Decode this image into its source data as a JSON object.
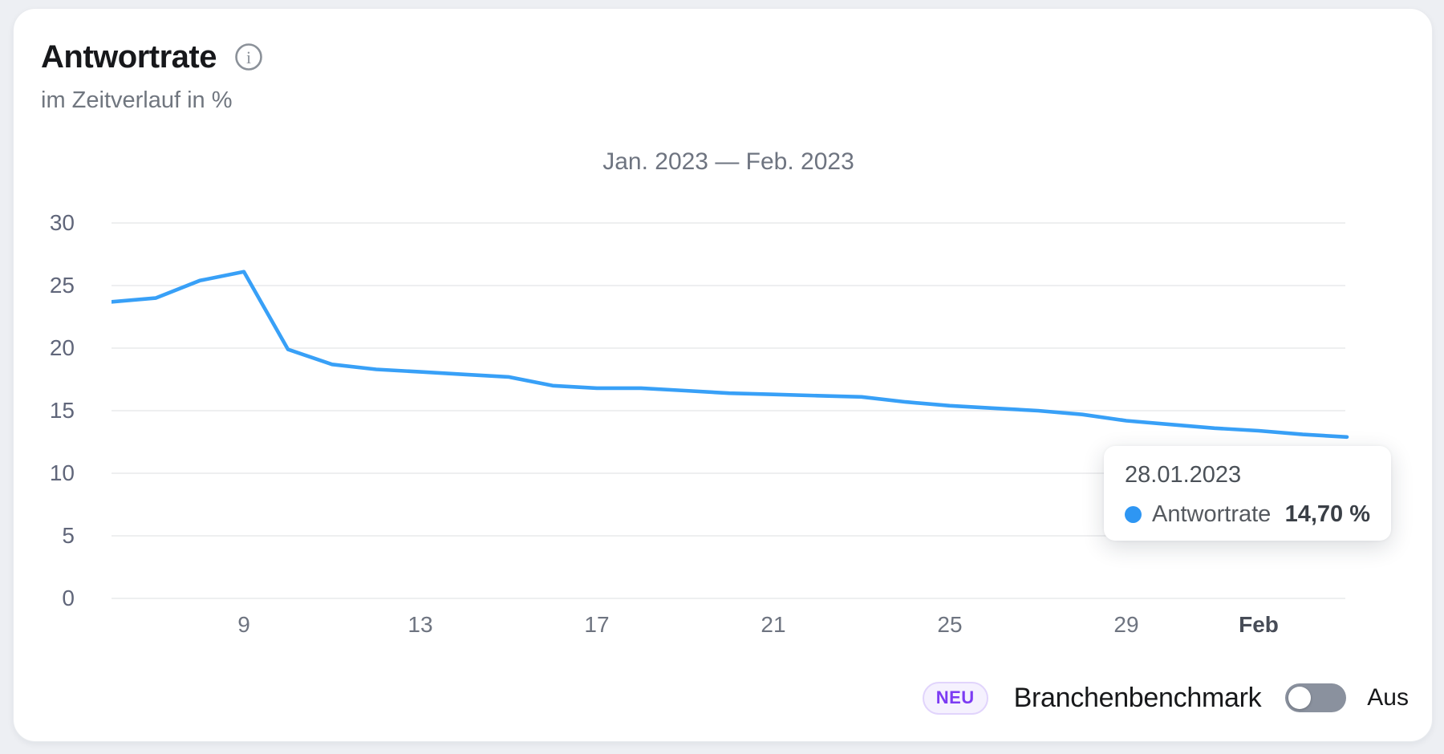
{
  "card": {
    "title": "Antwortrate",
    "subtitle": "im Zeitverlauf in %"
  },
  "chart_data": {
    "type": "line",
    "title": "Jan. 2023 — Feb. 2023",
    "ylim": [
      0,
      30
    ],
    "y_ticks": [
      0,
      5,
      10,
      15,
      20,
      25,
      30
    ],
    "grid": "horizontal",
    "dates": [
      "06.01.2023",
      "07.01.2023",
      "08.01.2023",
      "09.01.2023",
      "10.01.2023",
      "11.01.2023",
      "12.01.2023",
      "13.01.2023",
      "14.01.2023",
      "15.01.2023",
      "16.01.2023",
      "17.01.2023",
      "18.01.2023",
      "19.01.2023",
      "20.01.2023",
      "21.01.2023",
      "22.01.2023",
      "23.01.2023",
      "24.01.2023",
      "25.01.2023",
      "26.01.2023",
      "27.01.2023",
      "28.01.2023",
      "29.01.2023",
      "30.01.2023",
      "31.01.2023",
      "01.02.2023",
      "02.02.2023",
      "03.02.2023"
    ],
    "x_ticks": [
      {
        "index": 3,
        "label": "9",
        "bold": false
      },
      {
        "index": 7,
        "label": "13",
        "bold": false
      },
      {
        "index": 11,
        "label": "17",
        "bold": false
      },
      {
        "index": 15,
        "label": "21",
        "bold": false
      },
      {
        "index": 19,
        "label": "25",
        "bold": false
      },
      {
        "index": 23,
        "label": "29",
        "bold": false
      },
      {
        "index": 26,
        "label": "Feb",
        "bold": true
      }
    ],
    "series": [
      {
        "name": "Antwortrate",
        "color": "#38a0f7",
        "values": [
          23.7,
          24.0,
          25.4,
          26.1,
          19.9,
          18.7,
          18.3,
          18.1,
          17.9,
          17.7,
          17.0,
          16.8,
          16.8,
          16.6,
          16.4,
          16.3,
          16.2,
          16.1,
          15.7,
          15.4,
          15.2,
          15.0,
          14.7,
          14.2,
          13.9,
          13.6,
          13.4,
          13.1,
          12.9
        ]
      }
    ]
  },
  "tooltip": {
    "date": "28.01.2023",
    "series_label": "Antwortrate",
    "value": "14,70 %",
    "dot_color": "#2e96f3"
  },
  "benchmark": {
    "badge": "NEU",
    "label": "Branchenbenchmark",
    "state": "Aus"
  },
  "colors": {
    "line": "#38a0f7",
    "gridline": "#e9eaec",
    "accent_purple": "#7c3bf3",
    "toggle_track": "#8a919e"
  }
}
